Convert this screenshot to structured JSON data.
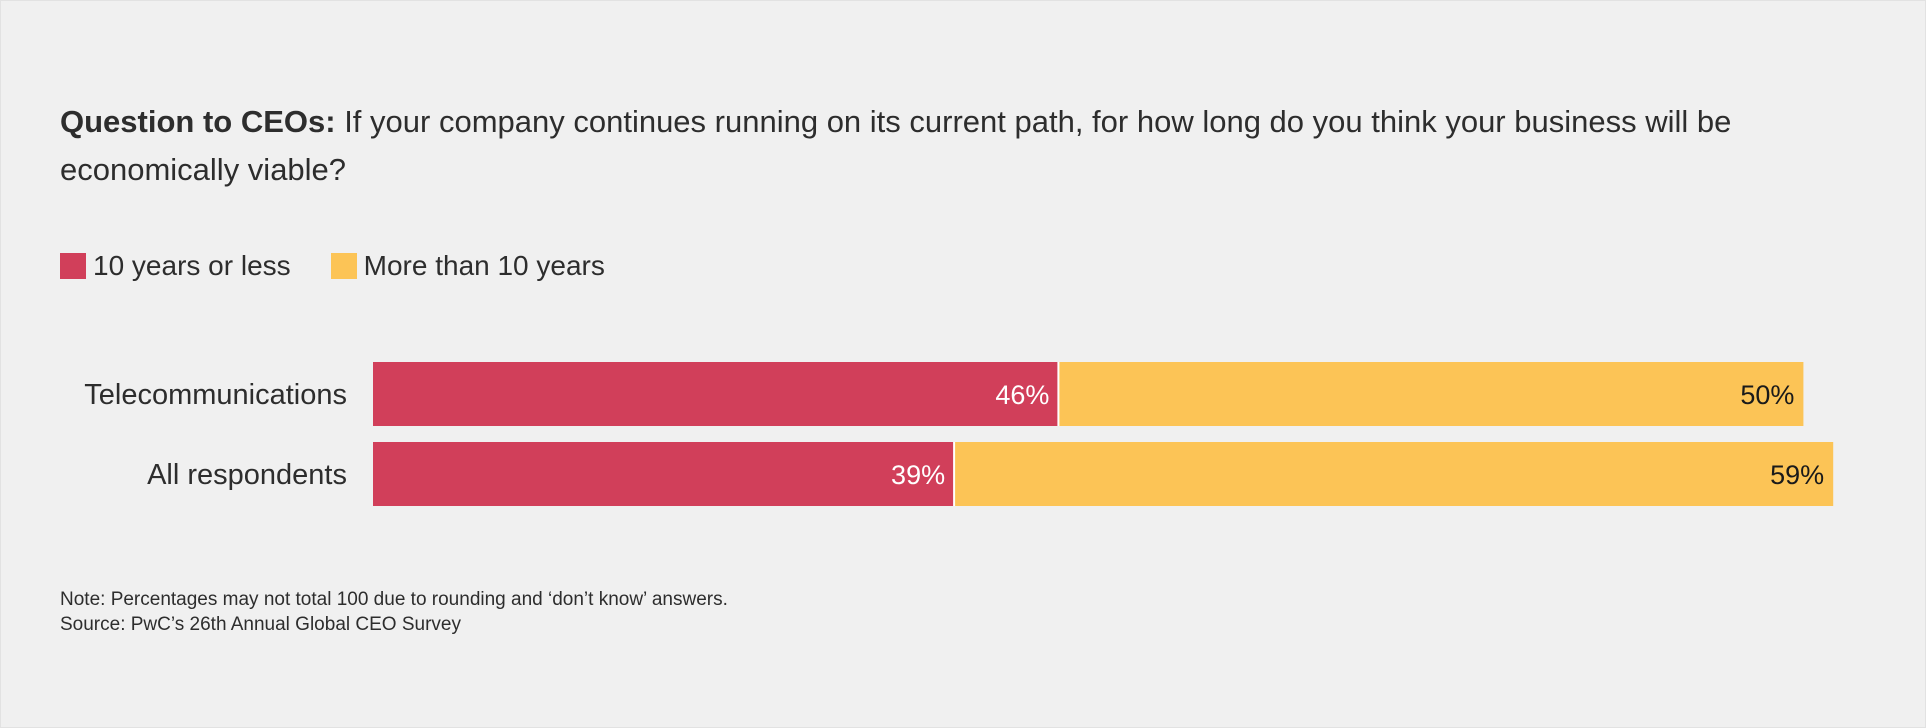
{
  "title": {
    "bold": "Question to CEOs:",
    "text": " If your company continues running on its current path, for how long do you think your business will be economically viable?"
  },
  "notes": {
    "note": "Note: Percentages may not total 100 due to rounding and ‘don’t know’ answers.",
    "source": "Source: PwC’s 26th Annual Global CEO Survey"
  },
  "chart_data": {
    "type": "bar",
    "orientation": "horizontal",
    "stacked": true,
    "title": "",
    "xlabel": "",
    "ylabel": "",
    "xlim": [
      0,
      100
    ],
    "grid": false,
    "legend_position": "top-left",
    "categories": [
      "Telecommunications",
      "All respondents"
    ],
    "series": [
      {
        "name": "10 years or less",
        "color": "#d13f5a",
        "values": [
          46,
          39
        ],
        "labels": [
          "46%",
          "39%"
        ]
      },
      {
        "name": "More than 10 years",
        "color": "#fcc456",
        "values": [
          50,
          59
        ],
        "labels": [
          "50%",
          "59%"
        ]
      }
    ]
  }
}
